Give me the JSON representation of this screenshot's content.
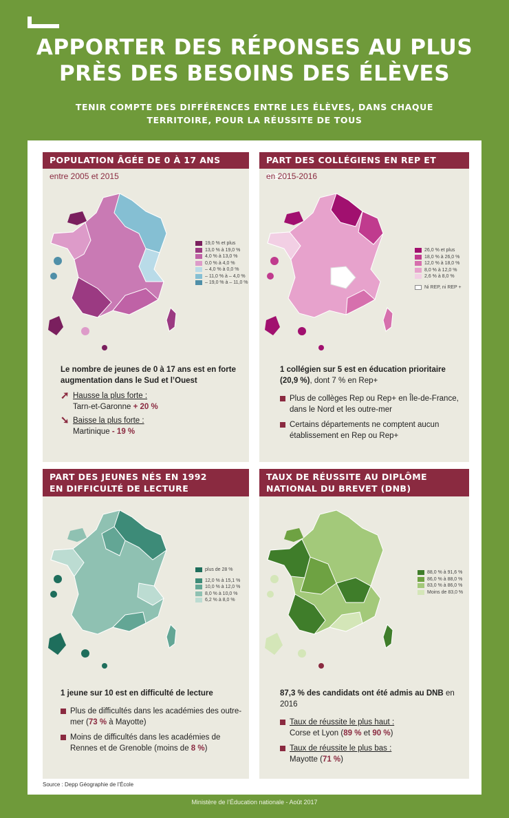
{
  "header": {
    "title_line1": "APPORTER DES RÉPONSES AU PLUS",
    "title_line2": "PRÈS DES BESOINS DES ÉLÈVES",
    "subtitle_line1": "TENIR COMPTE DES DIFFÉRENCES ENTRE LES ÉLÈVES, DANS CHAQUE",
    "subtitle_line2": "TERRITOIRE, POUR LA RÉUSSITE DE TOUS"
  },
  "panels": {
    "population": {
      "title": "POPULATION ÂGÉE DE 0 À 17 ANS",
      "subtitle": "entre 2005 et 2015",
      "legend": [
        {
          "label": "19,0 % et plus",
          "color": "#7a1f5e"
        },
        {
          "label": "13,0 % à 19,0 %",
          "color": "#9b3a82"
        },
        {
          "label": "4,0 % à 13,0 %",
          "color": "#bf62a6"
        },
        {
          "label": "0,0 % à 4,0 %",
          "color": "#dd9bc9"
        },
        {
          "label": "– 4,0 % à 0,0 %",
          "color": "#b9dbe8"
        },
        {
          "label": "– 11,0 % à – 4,0 %",
          "color": "#85bfd3"
        },
        {
          "label": "– 19,0 % à – 11,0 %",
          "color": "#4f8fa8"
        }
      ],
      "copyright": "© IGN",
      "lead": "Le nombre de jeunes de 0 à 17 ans est en forte augmentation dans le Sud et l’Ouest",
      "up_label": "Hausse la plus forte :",
      "up_place": "Tarn-et-Garonne",
      "up_value": "+ 20 %",
      "down_label": "Baisse la plus forte :",
      "down_place": "Martinique",
      "down_value": "- 19 %"
    },
    "rep": {
      "title": "PART DES COLLÉGIENS EN REP ET REP+",
      "subtitle": "en 2015-2016",
      "legend": [
        {
          "label": "26,0 % et plus",
          "color": "#a1106f"
        },
        {
          "label": "18,0 % à 26,0 %",
          "color": "#c03b8e"
        },
        {
          "label": "12,0 % à 18,0 %",
          "color": "#d670ad"
        },
        {
          "label": "8,0 % à 12,0 %",
          "color": "#e7a2cc"
        },
        {
          "label": "2,6 % à 8,0 %",
          "color": "#f2cfe4"
        },
        {
          "label": "Ni REP, ni REP +",
          "color": "#ffffff"
        }
      ],
      "copyright": "© IGN",
      "lead_bold": "1 collégien sur 5 est en éducation prioritaire (20,9 %)",
      "lead_rest": ", dont 7 % en Rep+",
      "bullet1": "Plus de collèges Rep ou Rep+ en Île-de-France, dans le Nord et les outre-mer",
      "bullet2": "Certains départements ne comptent aucun établissement en Rep ou Rep+"
    },
    "lecture": {
      "title_line1": "PART DES JEUNES NÉS EN 1992",
      "title_line2": "EN DIFFICULTÉ DE LECTURE",
      "legend": [
        {
          "label": "plus de 28 %",
          "color": "#1e6e5c"
        },
        {
          "label": "12,0 % à 15,1 %",
          "color": "#3d8b78"
        },
        {
          "label": "10,0 % à 12,0 %",
          "color": "#63a695"
        },
        {
          "label": "8,0 % à 10,0 %",
          "color": "#8fc1b2"
        },
        {
          "label": "6,2 % à 8,0 %",
          "color": "#bcdcd2"
        }
      ],
      "copyright": "© IGN",
      "lead": "1 jeune sur 10 est en difficulté de lecture",
      "b1_pre": "Plus de difficultés dans les académies des outre-mer (",
      "b1_val": "73 %",
      "b1_post": " à Mayotte)",
      "b2_pre": "Moins de difficultés dans les académies de Rennes et de Grenoble (moins de ",
      "b2_val": "8 %",
      "b2_post": ")"
    },
    "dnb": {
      "title_line1": "TAUX DE RÉUSSITE AU DIPLÔME",
      "title_line2": "NATIONAL DU BREVET (DNB)",
      "legend": [
        {
          "label": "88,0 % à 91,6 %",
          "color": "#3f7d2a"
        },
        {
          "label": "86,0 % à 88,0 %",
          "color": "#6ea242"
        },
        {
          "label": "83,0 % à 86,0 %",
          "color": "#a3c97a"
        },
        {
          "label": "Moins de 83,0 %",
          "color": "#d4e6b8"
        }
      ],
      "copyright": "© IGN",
      "lead_bold": "87,3 % des candidats ont été admis au DNB",
      "lead_rest": " en 2016",
      "high_label": "Taux de réussite le plus haut :",
      "high_places": "Corse et Lyon (",
      "high_v1": "89 %",
      "high_and": " et ",
      "high_v2": "90 %",
      "high_end": ")",
      "low_label": "Taux de réussite le plus bas :",
      "low_place": "Mayotte (",
      "low_value": "71 %",
      "low_end": ")"
    }
  },
  "source": "Source : Depp Géographie de l’École",
  "footer": "Ministère de l’Éducation nationale - Août 2017"
}
